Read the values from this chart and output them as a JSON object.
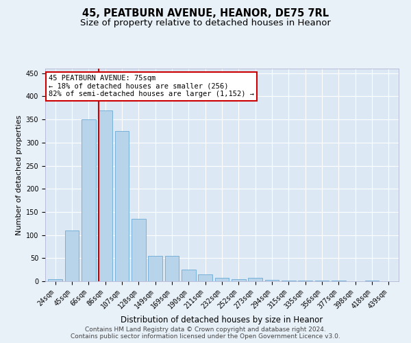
{
  "title1": "45, PEATBURN AVENUE, HEANOR, DE75 7RL",
  "title2": "Size of property relative to detached houses in Heanor",
  "xlabel": "Distribution of detached houses by size in Heanor",
  "ylabel": "Number of detached properties",
  "categories": [
    "24sqm",
    "45sqm",
    "66sqm",
    "86sqm",
    "107sqm",
    "128sqm",
    "149sqm",
    "169sqm",
    "190sqm",
    "211sqm",
    "232sqm",
    "252sqm",
    "273sqm",
    "294sqm",
    "315sqm",
    "335sqm",
    "356sqm",
    "377sqm",
    "398sqm",
    "418sqm",
    "439sqm"
  ],
  "values": [
    5,
    110,
    350,
    370,
    325,
    135,
    55,
    55,
    25,
    15,
    8,
    5,
    8,
    3,
    2,
    2,
    1,
    1,
    0,
    2,
    0
  ],
  "bar_color": "#b8d4ea",
  "bar_edge_color": "#6aaad4",
  "bar_edge_width": 0.6,
  "red_line_x": 2.62,
  "annotation_text": "45 PEATBURN AVENUE: 75sqm\n← 18% of detached houses are smaller (256)\n82% of semi-detached houses are larger (1,152) →",
  "annotation_box_color": "#ffffff",
  "annotation_box_edge_color": "#cc0000",
  "ylim": [
    0,
    460
  ],
  "yticks": [
    0,
    50,
    100,
    150,
    200,
    250,
    300,
    350,
    400,
    450
  ],
  "background_color": "#e8f0f8",
  "plot_bg_color": "#dce8f4",
  "grid_color": "#ffffff",
  "footer_line1": "Contains HM Land Registry data © Crown copyright and database right 2024.",
  "footer_line2": "Contains public sector information licensed under the Open Government Licence v3.0.",
  "title1_fontsize": 10.5,
  "title2_fontsize": 9.5,
  "xlabel_fontsize": 8.5,
  "ylabel_fontsize": 8,
  "tick_fontsize": 7,
  "annotation_fontsize": 7.5,
  "footer_fontsize": 6.5
}
